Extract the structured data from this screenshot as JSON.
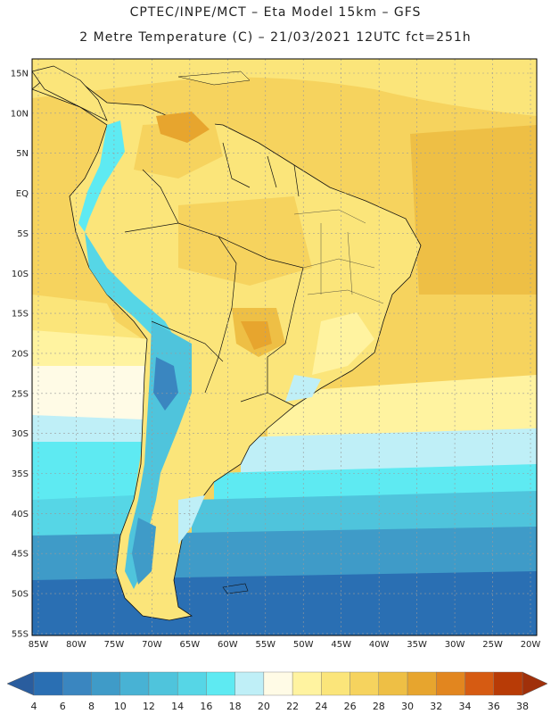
{
  "header": {
    "line1": "CPTEC/INPE/MCT –  Eta Model 15km – GFS",
    "line2": "2 Metre Temperature (C) – 21/03/2021 12UTC fct=251h"
  },
  "map": {
    "lat_ticks": [
      "15N",
      "10N",
      "5N",
      "EQ",
      "5S",
      "10S",
      "15S",
      "20S",
      "25S",
      "30S",
      "35S",
      "40S",
      "45S",
      "50S",
      "55S"
    ],
    "lon_ticks": [
      "85W",
      "80W",
      "75W",
      "70W",
      "65W",
      "60W",
      "55W",
      "50W",
      "45W",
      "40W",
      "35W",
      "30W",
      "25W",
      "20W"
    ],
    "lat_range": [
      15,
      -55
    ],
    "lon_range": [
      -85,
      -20
    ]
  },
  "colorbar": {
    "labels": [
      "4",
      "6",
      "8",
      "10",
      "12",
      "14",
      "16",
      "18",
      "20",
      "22",
      "24",
      "26",
      "28",
      "30",
      "32",
      "34",
      "36",
      "38"
    ],
    "colors": [
      "#2a6fb3",
      "#3a86c0",
      "#3f9bc8",
      "#48b2d4",
      "#4fc4dc",
      "#56d6e6",
      "#5eeaf2",
      "#bfeff7",
      "#fffbe6",
      "#fff3a0",
      "#fbe57a",
      "#f6d35e",
      "#eebf45",
      "#e7a52e",
      "#e2861f",
      "#d65b12",
      "#b83b06"
    ],
    "left_arrow_color": "#2a5d9e",
    "right_arrow_color": "#a0300a"
  }
}
